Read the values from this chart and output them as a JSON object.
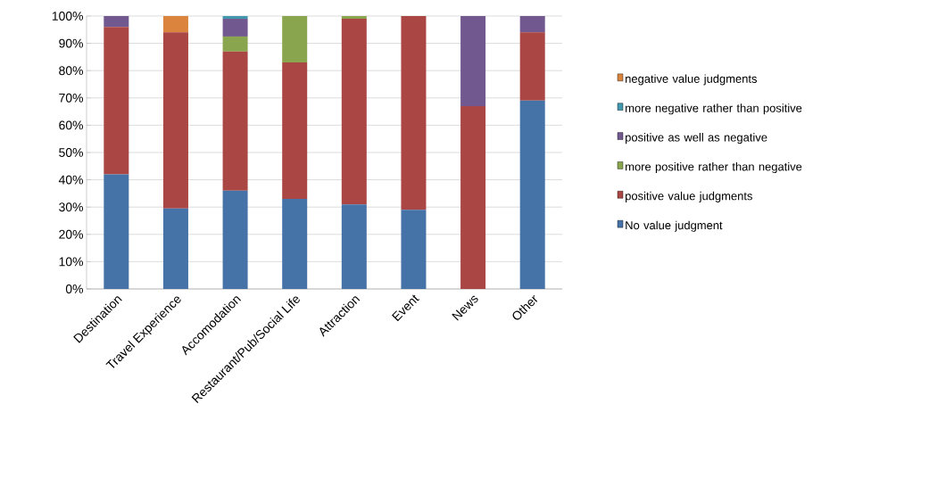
{
  "chart_data": {
    "type": "bar",
    "stacked": true,
    "categories": [
      "Destination",
      "Travel Experience",
      "Accomodation",
      "Restaurant/Pub/Social Life",
      "Attraction",
      "Event",
      "News",
      "Other"
    ],
    "series": [
      {
        "name": "No value judgment",
        "color": "#4572a7",
        "values": [
          42,
          29.5,
          36,
          33,
          31,
          29,
          null,
          69
        ]
      },
      {
        "name": "positive value judgments",
        "color": "#aa4643",
        "values": [
          54,
          64.5,
          51,
          50,
          68,
          71,
          67,
          25
        ]
      },
      {
        "name": "more positive  rather than negative",
        "color": "#89a54e",
        "values": [
          null,
          null,
          5.5,
          17,
          1,
          null,
          null,
          null
        ]
      },
      {
        "name": "positive  as well as negative",
        "color": "#71588f",
        "values": [
          4,
          null,
          6.5,
          null,
          null,
          null,
          33,
          6
        ]
      },
      {
        "name": "more negative rather  than positive",
        "color": "#4198af",
        "values": [
          null,
          null,
          1,
          null,
          null,
          null,
          null,
          null
        ]
      },
      {
        "name": "negative value judgments",
        "color": "#db843d",
        "values": [
          null,
          6,
          null,
          null,
          null,
          null,
          null,
          null
        ]
      }
    ],
    "ylim": [
      0,
      100
    ],
    "yticks": [
      {
        "value": 0,
        "label": "0%"
      },
      {
        "value": 10,
        "label": "10%"
      },
      {
        "value": 20,
        "label": "20%"
      },
      {
        "value": 30,
        "label": "30%"
      },
      {
        "value": 40,
        "label": "40%"
      },
      {
        "value": 50,
        "label": "50%"
      },
      {
        "value": 60,
        "label": "60%"
      },
      {
        "value": 70,
        "label": "70%"
      },
      {
        "value": 80,
        "label": "80%"
      },
      {
        "value": 90,
        "label": "90%"
      },
      {
        "value": 100,
        "label": "100%"
      }
    ],
    "grid": "y",
    "legend": "right"
  }
}
